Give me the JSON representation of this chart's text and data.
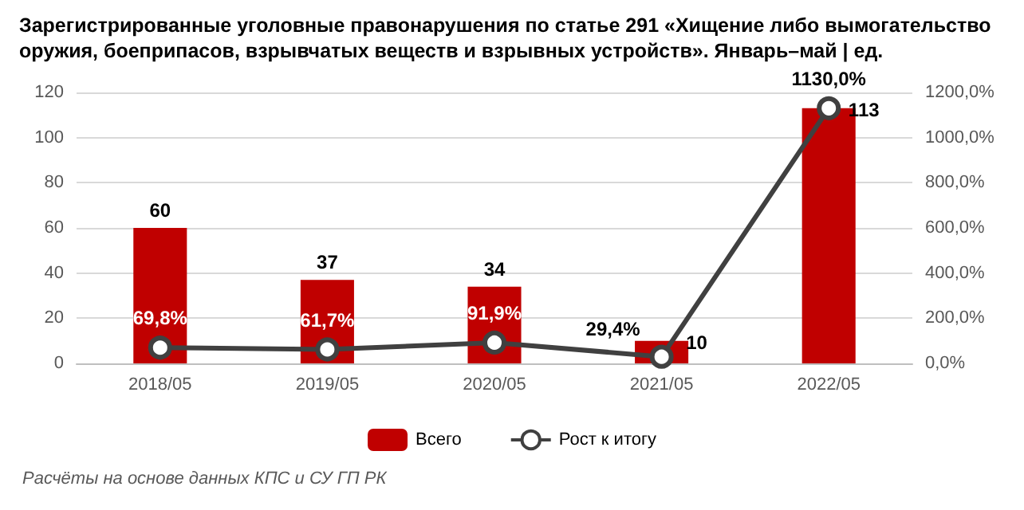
{
  "chart_data": {
    "type": "bar",
    "title": "Зарегистрированные уголовные правонарушения по статье 291 «Хищение либо вымогательство оружия, боеприпасов, взрывчатых веществ и взрывных устройств». Январь–май | ед.",
    "categories": [
      "2018/05",
      "2019/05",
      "2020/05",
      "2021/05",
      "2022/05"
    ],
    "series": [
      {
        "name": "Всего",
        "color": "#c00000",
        "values": [
          60,
          37,
          34,
          10,
          113
        ],
        "value_labels": [
          "60",
          "37",
          "34",
          "10",
          "113"
        ]
      },
      {
        "name": "Рост к итогу",
        "type": "line",
        "axis": "y2",
        "color": "#404040",
        "values": [
          69.8,
          61.7,
          91.9,
          29.4,
          1130.0
        ],
        "value_labels": [
          "69,8%",
          "61,7%",
          "91,9%",
          "29,4%",
          "1130,0%"
        ],
        "marker": "circle"
      }
    ],
    "ylim": [
      0,
      120
    ],
    "yticks": [
      0,
      20,
      40,
      60,
      80,
      100,
      120
    ],
    "y2lim": [
      0,
      1200
    ],
    "y2ticks": [
      {
        "value": 0,
        "label": "0,0%"
      },
      {
        "value": 200,
        "label": "200,0%"
      },
      {
        "value": 400,
        "label": "400,0%"
      },
      {
        "value": 600,
        "label": "600,0%"
      },
      {
        "value": 800,
        "label": "800,0%"
      },
      {
        "value": 1000,
        "label": "1000,0%"
      },
      {
        "value": 1200,
        "label": "1200,0%"
      }
    ],
    "grid": "y",
    "legend": "bottom",
    "annotations": [
      "Расчёты на основе данных КПС и СУ ГП РК"
    ]
  }
}
